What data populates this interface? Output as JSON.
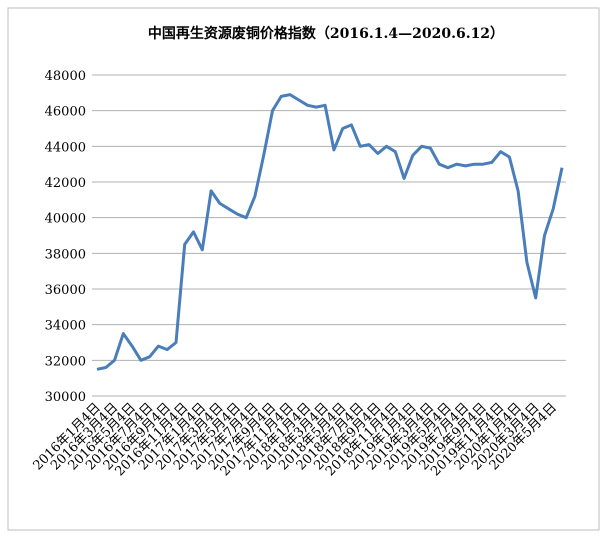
{
  "chart_data": {
    "type": "line",
    "title": "中国再生资源废铜价格指数（2016.1.4—2020.6.12）",
    "categories": [
      "2016年1月4日",
      null,
      "2016年3月4日",
      null,
      "2016年5月4日",
      null,
      "2016年7月4日",
      null,
      "2016年9月4日",
      null,
      "2016年11月4日",
      null,
      "2017年1月4日",
      null,
      "2017年3月4日",
      null,
      "2017年5月4日",
      null,
      "2017年7月4日",
      null,
      "2017年9月4日",
      null,
      "2017年11月4日",
      null,
      "2018年1月4日",
      null,
      "2018年3月4日",
      null,
      "2018年5月4日",
      null,
      "2018年7月4日",
      null,
      "2018年9月4日",
      null,
      "2018年11月4日",
      null,
      "2019年1月4日",
      null,
      "2019年3月4日",
      null,
      "2019年5月4日",
      null,
      "2019年7月4日",
      null,
      "2019年9月4日",
      null,
      "2019年11月4日",
      null,
      "2020年1月4日",
      null,
      "2020年3月4日",
      null,
      "2020年5月4日",
      null
    ],
    "series": [
      {
        "name": "废铜价格指数",
        "color": "#4a7ebb",
        "values": [
          31500,
          31600,
          32000,
          33500,
          32800,
          32000,
          32200,
          32800,
          32600,
          33000,
          38500,
          39200,
          38200,
          41500,
          40800,
          40500,
          40200,
          40000,
          41200,
          43500,
          46000,
          46800,
          46900,
          46600,
          46300,
          46200,
          46300,
          43800,
          45000,
          45200,
          44000,
          44100,
          43600,
          44000,
          43700,
          42200,
          43500,
          44000,
          43900,
          43000,
          42800,
          43000,
          42900,
          43000,
          43000,
          43100,
          43700,
          43400,
          41500,
          37500,
          35500,
          39000,
          40500,
          42800
        ]
      }
    ],
    "ylim": [
      30000,
      48000
    ],
    "yticks": [
      30000,
      32000,
      34000,
      36000,
      38000,
      40000,
      42000,
      44000,
      46000,
      48000
    ],
    "grid": true,
    "legend": false
  }
}
